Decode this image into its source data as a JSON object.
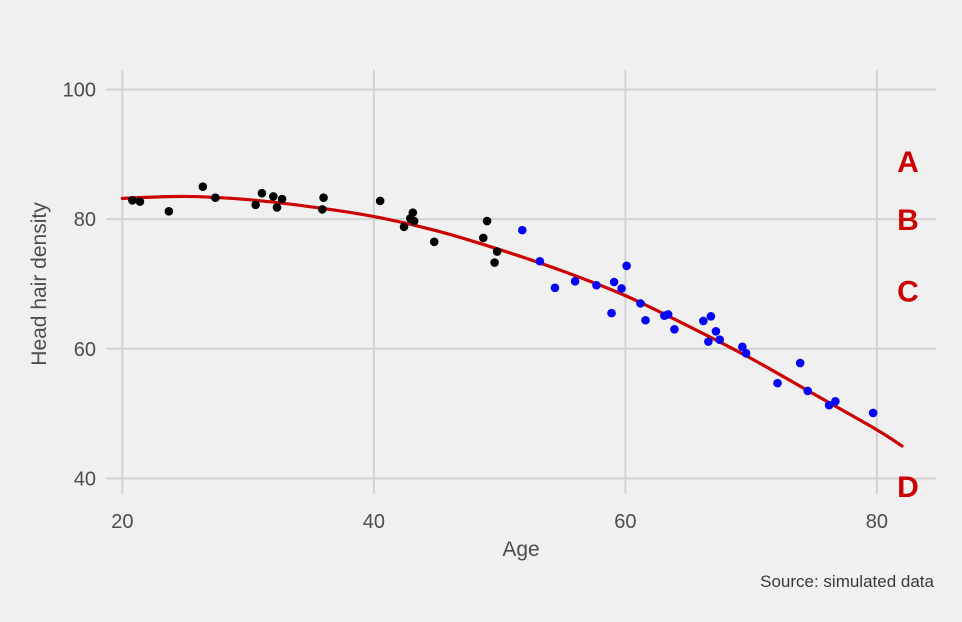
{
  "chart_data": {
    "type": "scatter",
    "xlabel": "Age",
    "ylabel": "Head hair density",
    "xlim": [
      18.7,
      84.7
    ],
    "ylim": [
      37.6,
      103
    ],
    "x_ticks": [
      20,
      40,
      60,
      80
    ],
    "y_ticks": [
      40,
      60,
      80,
      100
    ],
    "grid": true,
    "caption": "Source: simulated data",
    "series": [
      {
        "color": "#000000",
        "points": [
          [
            20.8,
            82.9
          ],
          [
            21.4,
            82.7
          ],
          [
            23.7,
            81.2
          ],
          [
            26.4,
            85.0
          ],
          [
            27.4,
            83.3
          ],
          [
            30.6,
            82.2
          ],
          [
            31.1,
            84.0
          ],
          [
            32.0,
            83.5
          ],
          [
            32.3,
            81.8
          ],
          [
            32.7,
            83.1
          ],
          [
            35.9,
            81.5
          ],
          [
            36.0,
            83.3
          ],
          [
            40.5,
            82.8
          ],
          [
            42.4,
            78.8
          ],
          [
            42.9,
            80.1
          ],
          [
            43.1,
            81.0
          ],
          [
            43.2,
            79.7
          ],
          [
            44.8,
            76.5
          ],
          [
            48.7,
            77.1
          ],
          [
            49.0,
            79.7
          ],
          [
            49.6,
            73.3
          ],
          [
            49.8,
            75.0
          ]
        ]
      },
      {
        "color": "#0000ff",
        "points": [
          [
            51.8,
            78.3
          ],
          [
            53.2,
            73.5
          ],
          [
            54.4,
            69.4
          ],
          [
            56.0,
            70.4
          ],
          [
            57.7,
            69.8
          ],
          [
            58.9,
            65.5
          ],
          [
            59.1,
            70.3
          ],
          [
            59.7,
            69.3
          ],
          [
            60.1,
            72.8
          ],
          [
            61.2,
            67.0
          ],
          [
            61.6,
            64.4
          ],
          [
            63.1,
            65.1
          ],
          [
            63.4,
            65.3
          ],
          [
            63.9,
            63.0
          ],
          [
            66.2,
            64.3
          ],
          [
            66.6,
            61.1
          ],
          [
            66.8,
            65.0
          ],
          [
            67.2,
            62.7
          ],
          [
            67.5,
            61.4
          ],
          [
            69.3,
            60.3
          ],
          [
            69.6,
            59.3
          ],
          [
            72.1,
            54.7
          ],
          [
            73.9,
            57.8
          ],
          [
            74.5,
            53.5
          ],
          [
            76.2,
            51.3
          ],
          [
            76.7,
            51.9
          ],
          [
            79.7,
            50.1
          ]
        ]
      }
    ],
    "fit": {
      "color": "#cc0000",
      "points": [
        [
          20,
          83.2
        ],
        [
          25,
          83.5
        ],
        [
          30,
          83.0
        ],
        [
          35,
          81.9
        ],
        [
          40,
          80.4
        ],
        [
          45,
          78.2
        ],
        [
          50,
          75.3
        ],
        [
          55,
          72.0
        ],
        [
          60,
          68.2
        ],
        [
          65,
          63.5
        ],
        [
          70,
          58.5
        ],
        [
          75,
          53.0
        ],
        [
          80,
          47.5
        ],
        [
          82,
          45.0
        ]
      ]
    },
    "zone_labels": {
      "color": "#cc0000",
      "items": [
        {
          "text": "A",
          "y": 89
        },
        {
          "text": "B",
          "y": 80
        },
        {
          "text": "C",
          "y": 69
        },
        {
          "text": "D",
          "y": 38.8
        }
      ]
    }
  }
}
